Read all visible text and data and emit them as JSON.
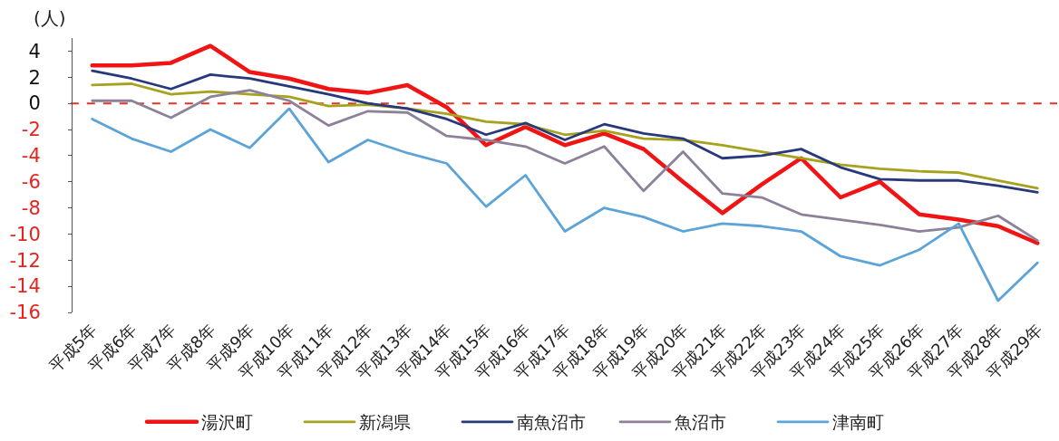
{
  "chart_data": {
    "type": "line",
    "ylabel": "(人)",
    "categories": [
      "平成5年",
      "平成6年",
      "平成7年",
      "平成8年",
      "平成9年",
      "平成10年",
      "平成11年",
      "平成12年",
      "平成13年",
      "平成14年",
      "平成15年",
      "平成16年",
      "平成17年",
      "平成18年",
      "平成19年",
      "平成20年",
      "平成21年",
      "平成22年",
      "平成23年",
      "平成24年",
      "平成25年",
      "平成26年",
      "平成27年",
      "平成28年",
      "平成29年"
    ],
    "series": [
      {
        "name": "湯沢町",
        "color": "#f01414",
        "values": [
          2.9,
          2.9,
          3.1,
          4.4,
          2.4,
          1.9,
          1.1,
          0.8,
          1.4,
          -0.3,
          -3.2,
          -1.8,
          -3.2,
          -2.3,
          -3.5,
          -6.0,
          -8.4,
          -6.2,
          -4.2,
          -7.2,
          -6.0,
          -8.5,
          -8.9,
          -9.4,
          -10.7
        ]
      },
      {
        "name": "新潟県",
        "color": "#a6a21e",
        "values": [
          1.4,
          1.5,
          0.7,
          0.9,
          0.7,
          0.5,
          -0.2,
          -0.1,
          -0.4,
          -0.8,
          -1.4,
          -1.6,
          -2.4,
          -2.1,
          -2.7,
          -2.8,
          -3.2,
          -3.7,
          -4.2,
          -4.7,
          -5.0,
          -5.2,
          -5.3,
          -5.9,
          -6.5
        ]
      },
      {
        "name": "南魚沼市",
        "color": "#27397a",
        "values": [
          2.5,
          1.9,
          1.1,
          2.2,
          1.9,
          1.3,
          0.7,
          0.0,
          -0.4,
          -1.2,
          -2.4,
          -1.5,
          -2.8,
          -1.6,
          -2.3,
          -2.7,
          -4.2,
          -4.0,
          -3.5,
          -4.9,
          -5.8,
          -5.9,
          -5.9,
          -6.3,
          -6.8
        ]
      },
      {
        "name": "魚沼市",
        "color": "#8c8199",
        "values": [
          0.2,
          0.2,
          -1.1,
          0.5,
          1.0,
          0.2,
          -1.7,
          -0.6,
          -0.7,
          -2.5,
          -2.8,
          -3.3,
          -4.6,
          -3.3,
          -6.7,
          -3.7,
          -6.9,
          -7.2,
          -8.5,
          -8.9,
          -9.3,
          -9.8,
          -9.5,
          -8.6,
          -10.5
        ]
      },
      {
        "name": "津南町",
        "color": "#5ca3d8",
        "values": [
          -1.2,
          -2.7,
          -3.7,
          -2.0,
          -3.4,
          -0.4,
          -4.5,
          -2.8,
          -3.8,
          -4.6,
          -7.9,
          -5.5,
          -9.8,
          -8.0,
          -8.7,
          -9.8,
          -9.2,
          -9.4,
          -9.8,
          -11.7,
          -12.4,
          -11.2,
          -9.2,
          -15.1,
          -12.2
        ]
      }
    ],
    "ylim": [
      -16,
      5
    ],
    "yticks": [
      4,
      2,
      0,
      -2,
      -4,
      -6,
      -8,
      -10,
      -12,
      -14,
      -16
    ],
    "ref_lines": [
      {
        "axis": "y",
        "value": 0,
        "color": "#e8302a",
        "line_style": "dashed"
      }
    ],
    "legend": "bottom"
  }
}
